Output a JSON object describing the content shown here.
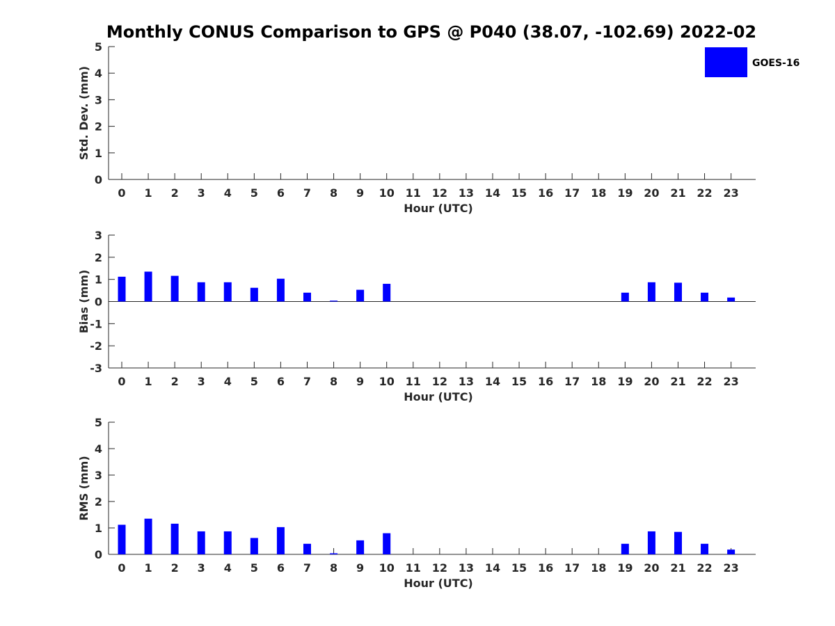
{
  "title": "Monthly CONUS Comparison to GPS @ P040 (38.07, -102.69) 2022-02",
  "colors": {
    "bar": "#0000ff",
    "axis": "#262626"
  },
  "legend": {
    "label": "GOES-16",
    "placement": "top-right"
  },
  "chart_data": [
    {
      "type": "bar",
      "xlabel": "Hour (UTC)",
      "ylabel": "Std. Dev. (mm)",
      "categories": [
        "0",
        "1",
        "2",
        "3",
        "4",
        "5",
        "6",
        "7",
        "8",
        "9",
        "10",
        "11",
        "12",
        "13",
        "14",
        "15",
        "16",
        "17",
        "18",
        "19",
        "20",
        "21",
        "22",
        "23"
      ],
      "ylim": [
        0,
        5
      ],
      "yticks": [
        "0",
        "1",
        "2",
        "3",
        "4",
        "5"
      ],
      "series": [
        {
          "name": "GOES-16",
          "values": [
            0,
            0,
            0,
            0,
            0,
            0,
            0,
            0,
            0,
            0,
            0,
            null,
            null,
            null,
            null,
            null,
            null,
            null,
            null,
            0,
            0,
            0,
            0,
            0
          ]
        }
      ]
    },
    {
      "type": "bar",
      "xlabel": "Hour (UTC)",
      "ylabel": "Bias (mm)",
      "categories": [
        "0",
        "1",
        "2",
        "3",
        "4",
        "5",
        "6",
        "7",
        "8",
        "9",
        "10",
        "11",
        "12",
        "13",
        "14",
        "15",
        "16",
        "17",
        "18",
        "19",
        "20",
        "21",
        "22",
        "23"
      ],
      "ylim": [
        -3,
        3
      ],
      "yticks": [
        "-3",
        "-2",
        "-1",
        "0",
        "1",
        "2",
        "3"
      ],
      "series": [
        {
          "name": "GOES-16",
          "values": [
            1.12,
            1.35,
            1.16,
            0.87,
            0.87,
            0.62,
            1.03,
            0.4,
            0.04,
            0.53,
            0.8,
            null,
            null,
            null,
            null,
            null,
            null,
            null,
            null,
            0.4,
            0.87,
            0.85,
            0.4,
            0.18
          ]
        }
      ]
    },
    {
      "type": "bar",
      "xlabel": "Hour (UTC)",
      "ylabel": "RMS (mm)",
      "categories": [
        "0",
        "1",
        "2",
        "3",
        "4",
        "5",
        "6",
        "7",
        "8",
        "9",
        "10",
        "11",
        "12",
        "13",
        "14",
        "15",
        "16",
        "17",
        "18",
        "19",
        "20",
        "21",
        "22",
        "23"
      ],
      "ylim": [
        0,
        5
      ],
      "yticks": [
        "0",
        "1",
        "2",
        "3",
        "4",
        "5"
      ],
      "series": [
        {
          "name": "GOES-16",
          "values": [
            1.12,
            1.35,
            1.16,
            0.87,
            0.87,
            0.62,
            1.03,
            0.4,
            0.04,
            0.53,
            0.8,
            null,
            null,
            null,
            null,
            null,
            null,
            null,
            null,
            0.4,
            0.87,
            0.85,
            0.4,
            0.18
          ]
        }
      ]
    }
  ]
}
